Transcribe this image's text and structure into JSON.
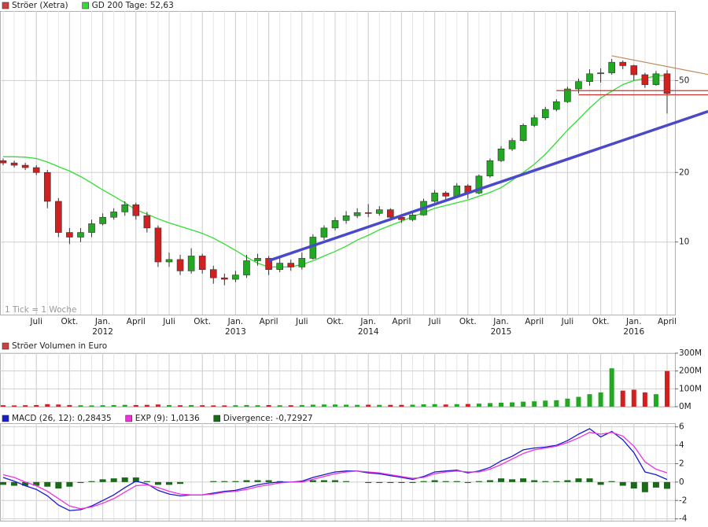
{
  "chart_data": [
    {
      "type": "candlestick",
      "categories": [
        "2011-04",
        "2011-05",
        "2011-06",
        "2011-07",
        "2011-08",
        "2011-09",
        "2011-10",
        "2011-11",
        "2011-12",
        "2012-01",
        "2012-02",
        "2012-03",
        "2012-04",
        "2012-05",
        "2012-06",
        "2012-07",
        "2012-08",
        "2012-09",
        "2012-10",
        "2012-11",
        "2012-12",
        "2013-01",
        "2013-02",
        "2013-03",
        "2013-04",
        "2013-05",
        "2013-06",
        "2013-07",
        "2013-08",
        "2013-09",
        "2013-10",
        "2013-11",
        "2013-12",
        "2014-01",
        "2014-02",
        "2014-03",
        "2014-04",
        "2014-05",
        "2014-06",
        "2014-07",
        "2014-08",
        "2014-09",
        "2014-10",
        "2014-11",
        "2014-12",
        "2015-01",
        "2015-02",
        "2015-03",
        "2015-04",
        "2015-05",
        "2015-06",
        "2015-07",
        "2015-08",
        "2015-09",
        "2015-10",
        "2015-11",
        "2015-12",
        "2016-01",
        "2016-02",
        "2016-03",
        "2016-04"
      ],
      "series": [
        {
          "name": "Ströer (Xetra)",
          "color": "#d04040",
          "up_color": "#22a822",
          "down_color": "#d02020",
          "open": [
            22.5,
            22,
            21.5,
            21,
            20,
            15,
            11,
            10.5,
            11,
            12,
            12.8,
            13.5,
            14.5,
            13,
            11.5,
            8.2,
            8.4,
            7.5,
            8.7,
            7.6,
            7,
            6.9,
            7.2,
            8.3,
            8.5,
            7.6,
            8.1,
            7.8,
            8.5,
            10.5,
            11.5,
            12.4,
            13,
            13.4,
            13.3,
            13.8,
            12.8,
            12.5,
            13.1,
            15,
            16.3,
            15.8,
            17.5,
            16.3,
            19.3,
            22.5,
            25.3,
            27.5,
            32,
            34.5,
            37.5,
            40.5,
            46,
            49.5,
            53.5,
            54,
            60,
            58,
            53,
            48,
            53.5
          ],
          "high": [
            23,
            22.5,
            22,
            21.5,
            20.5,
            15.5,
            11.5,
            11.5,
            12.5,
            13.3,
            14,
            15,
            14.8,
            13.5,
            11.8,
            9,
            8.8,
            9.4,
            8.9,
            7.9,
            7.3,
            7.5,
            8.8,
            8.9,
            8.7,
            8.6,
            8.4,
            9,
            10.8,
            11.8,
            12.8,
            13.6,
            14,
            14.6,
            14.3,
            14,
            13.2,
            13.5,
            15.4,
            16.8,
            16.6,
            18,
            17.8,
            19.6,
            23,
            26,
            28.2,
            32.6,
            35.5,
            38.5,
            41.5,
            47,
            51,
            56,
            56.5,
            62,
            61,
            58.5,
            54,
            55,
            55.5
          ],
          "low": [
            21.5,
            21,
            20.5,
            19.5,
            14,
            10.5,
            9.8,
            10,
            10.5,
            11.8,
            12.5,
            13,
            12.5,
            11,
            7.8,
            7.8,
            7.2,
            7.3,
            7.3,
            6.6,
            6.5,
            6.7,
            7,
            7.9,
            7.2,
            7.4,
            7.5,
            7.6,
            8.4,
            10.2,
            11.2,
            12,
            12.7,
            12.8,
            13,
            12.4,
            12.1,
            12.3,
            13,
            14.8,
            15.2,
            15.6,
            15.4,
            16.1,
            19,
            22.2,
            24.8,
            27.2,
            31.5,
            33.8,
            36.8,
            40,
            44,
            47.5,
            49,
            53,
            56,
            50,
            46.5,
            47.5,
            36
          ],
          "close": [
            22,
            21.5,
            21,
            20,
            15,
            11,
            10.5,
            11,
            12,
            12.8,
            13.5,
            14.5,
            13,
            11.5,
            8.2,
            8.4,
            7.5,
            8.7,
            7.6,
            7,
            6.9,
            7.2,
            8.3,
            8.5,
            7.6,
            8.1,
            7.8,
            8.5,
            10.5,
            11.5,
            12.4,
            13,
            13.4,
            13.3,
            13.8,
            12.8,
            12.5,
            13.1,
            15,
            16.3,
            15.8,
            17.5,
            16.3,
            19.3,
            22.5,
            25.3,
            27.5,
            32,
            34.5,
            37.5,
            40.5,
            46,
            49.5,
            53.5,
            54,
            60,
            58,
            53,
            48,
            53.5,
            44
          ]
        },
        {
          "name": "GD 200 Tage: 52,63",
          "color": "#33dd33",
          "values": [
            23.4,
            23.4,
            23.3,
            23,
            22.2,
            21.2,
            20.3,
            19.2,
            18,
            16.8,
            15.8,
            14.8,
            13.8,
            13.2,
            12.6,
            12.1,
            11.7,
            11.3,
            10.9,
            10.4,
            9.8,
            9.2,
            8.6,
            8.1,
            7.8,
            7.8,
            7.8,
            8,
            8.3,
            8.7,
            9.1,
            9.6,
            10.2,
            10.7,
            11.3,
            11.8,
            12.3,
            12.9,
            13.4,
            14,
            14.4,
            14.8,
            15.2,
            15.8,
            16.4,
            17.2,
            18.5,
            20,
            21.7,
            24,
            27,
            30.5,
            34,
            38,
            42,
            45,
            48,
            50,
            51,
            52.5,
            52.6
          ]
        }
      ],
      "ylim": [
        4.85,
        100
      ],
      "yticks": [
        10,
        20,
        50
      ],
      "log_scale": true,
      "grid": true,
      "xticks": [
        {
          "value": "2011-07",
          "label": "Juli"
        },
        {
          "value": "2011-10",
          "label": "Okt."
        },
        {
          "value": "2012-01",
          "label": "Jan."
        },
        {
          "value": "2012-04",
          "label": "April"
        },
        {
          "value": "2012-07",
          "label": "Juli"
        },
        {
          "value": "2012-10",
          "label": "Okt."
        },
        {
          "value": "2013-01",
          "label": "Jan."
        },
        {
          "value": "2013-04",
          "label": "April"
        },
        {
          "value": "2013-07",
          "label": "Juli"
        },
        {
          "value": "2013-10",
          "label": "Okt."
        },
        {
          "value": "2014-01",
          "label": "Jan."
        },
        {
          "value": "2014-04",
          "label": "April"
        },
        {
          "value": "2014-07",
          "label": "Juli"
        },
        {
          "value": "2014-10",
          "label": "Okt."
        },
        {
          "value": "2015-01",
          "label": "Jan."
        },
        {
          "value": "2015-04",
          "label": "April"
        },
        {
          "value": "2015-07",
          "label": "Juli"
        },
        {
          "value": "2015-10",
          "label": "Okt."
        },
        {
          "value": "2016-01",
          "label": "Jan."
        },
        {
          "value": "2016-04",
          "label": "April"
        }
      ],
      "year_ticks": [
        {
          "value": "2012-01",
          "label": "2012"
        },
        {
          "value": "2013-01",
          "label": "2013"
        },
        {
          "value": "2014-01",
          "label": "2014"
        },
        {
          "value": "2015-01",
          "label": "2015"
        },
        {
          "value": "2016-01",
          "label": "2016"
        }
      ],
      "annotation": "1 Tick = 1 Woche",
      "trend_lines": [
        {
          "color": "#4a4ac8",
          "from": [
            "2013-04",
            8.3
          ],
          "to": [
            "2016-04",
            32
          ]
        },
        {
          "color": "#c08a5a",
          "from": [
            "2015-11",
            64
          ],
          "to": [
            "2016-04",
            57.5
          ]
        }
      ],
      "hlines": [
        {
          "color": "#cc3333",
          "y": 45.2,
          "from": "2015-06"
        },
        {
          "color": "#cc3333",
          "y": 43.4,
          "from": "2015-08"
        }
      ]
    },
    {
      "type": "bar",
      "title": "Ströer Volumen in Euro",
      "color": "#d04040",
      "values": [
        8000000,
        7000000,
        8000000,
        9000000,
        14000000,
        12000000,
        9000000,
        8000000,
        7000000,
        8000000,
        9000000,
        10000000,
        9000000,
        10000000,
        12000000,
        9000000,
        8000000,
        9000000,
        8000000,
        7000000,
        7000000,
        8000000,
        9000000,
        8000000,
        9000000,
        8000000,
        8000000,
        9000000,
        11000000,
        12000000,
        12000000,
        11000000,
        10000000,
        11000000,
        10000000,
        10000000,
        10000000,
        11000000,
        13000000,
        14000000,
        12000000,
        14000000,
        15000000,
        17000000,
        20000000,
        22000000,
        24000000,
        28000000,
        30000000,
        34000000,
        36000000,
        45000000,
        55000000,
        70000000,
        80000000,
        215000000,
        90000000,
        95000000,
        80000000,
        70000000,
        200000000
      ],
      "ylim": [
        0,
        300000000
      ],
      "yticks": [
        {
          "value": 0,
          "label": "0M"
        },
        {
          "value": 100000000,
          "label": "100M"
        },
        {
          "value": 200000000,
          "label": "200M"
        },
        {
          "value": 300000000,
          "label": "300M"
        }
      ],
      "grid": true
    },
    {
      "type": "line",
      "series": [
        {
          "name": "MACD (26, 12): 0,28435",
          "color": "#1a1ad0",
          "values": [
            0.5,
            0.1,
            -0.4,
            -0.8,
            -1.5,
            -2.5,
            -3.1,
            -3,
            -2.6,
            -2,
            -1.4,
            -0.6,
            0.1,
            -0.2,
            -0.9,
            -1.3,
            -1.5,
            -1.4,
            -1.4,
            -1.2,
            -1,
            -0.9,
            -0.6,
            -0.3,
            -0.1,
            0,
            0,
            0.1,
            0.5,
            0.8,
            1.1,
            1.2,
            1.2,
            1,
            0.9,
            0.7,
            0.5,
            0.3,
            0.6,
            1.1,
            1.2,
            1.3,
            1,
            1.2,
            1.6,
            2.3,
            2.8,
            3.5,
            3.7,
            3.8,
            4,
            4.5,
            5.2,
            5.8,
            4.9,
            5.5,
            4.6,
            3.2,
            1.1,
            0.8,
            0.28
          ]
        },
        {
          "name": "EXP (9): 1,0136",
          "color": "#ee33dd",
          "values": [
            0.8,
            0.5,
            0,
            -0.4,
            -1,
            -1.8,
            -2.6,
            -2.9,
            -2.7,
            -2.3,
            -1.8,
            -1.1,
            -0.4,
            -0.3,
            -0.6,
            -1,
            -1.3,
            -1.4,
            -1.4,
            -1.3,
            -1.1,
            -1,
            -0.8,
            -0.5,
            -0.3,
            -0.1,
            0,
            0,
            0.3,
            0.6,
            0.9,
            1.1,
            1.2,
            1.1,
            1,
            0.8,
            0.6,
            0.4,
            0.5,
            0.9,
            1.1,
            1.2,
            1.1,
            1.1,
            1.4,
            1.9,
            2.5,
            3.1,
            3.5,
            3.7,
            3.9,
            4.3,
            4.8,
            5.4,
            5.2,
            5.4,
            5,
            3.9,
            2.2,
            1.4,
            1.01
          ]
        },
        {
          "name": "Divergence: -0,72927",
          "color": "#1a6a1a",
          "style": "histogram",
          "values": [
            -0.3,
            -0.4,
            -0.4,
            -0.4,
            -0.5,
            -0.7,
            -0.5,
            -0.1,
            0.1,
            0.3,
            0.4,
            0.5,
            0.5,
            0.1,
            -0.3,
            -0.3,
            -0.2,
            0,
            0,
            0.1,
            0.1,
            0.1,
            0.2,
            0.2,
            0.2,
            0.1,
            0,
            0.1,
            0.2,
            0.2,
            0.2,
            0.1,
            0,
            -0.1,
            -0.1,
            -0.1,
            -0.1,
            -0.1,
            0.1,
            0.2,
            0.1,
            0.1,
            -0.1,
            0.1,
            0.2,
            0.4,
            0.3,
            0.4,
            0.2,
            0.1,
            0.1,
            0.2,
            0.4,
            0.4,
            -0.3,
            0.1,
            -0.4,
            -0.7,
            -1.1,
            -0.6,
            -0.73
          ]
        }
      ],
      "ylim": [
        -4.2,
        6.4
      ],
      "yticks": [
        6,
        4,
        2,
        0,
        -2,
        -4
      ],
      "grid": true
    }
  ]
}
